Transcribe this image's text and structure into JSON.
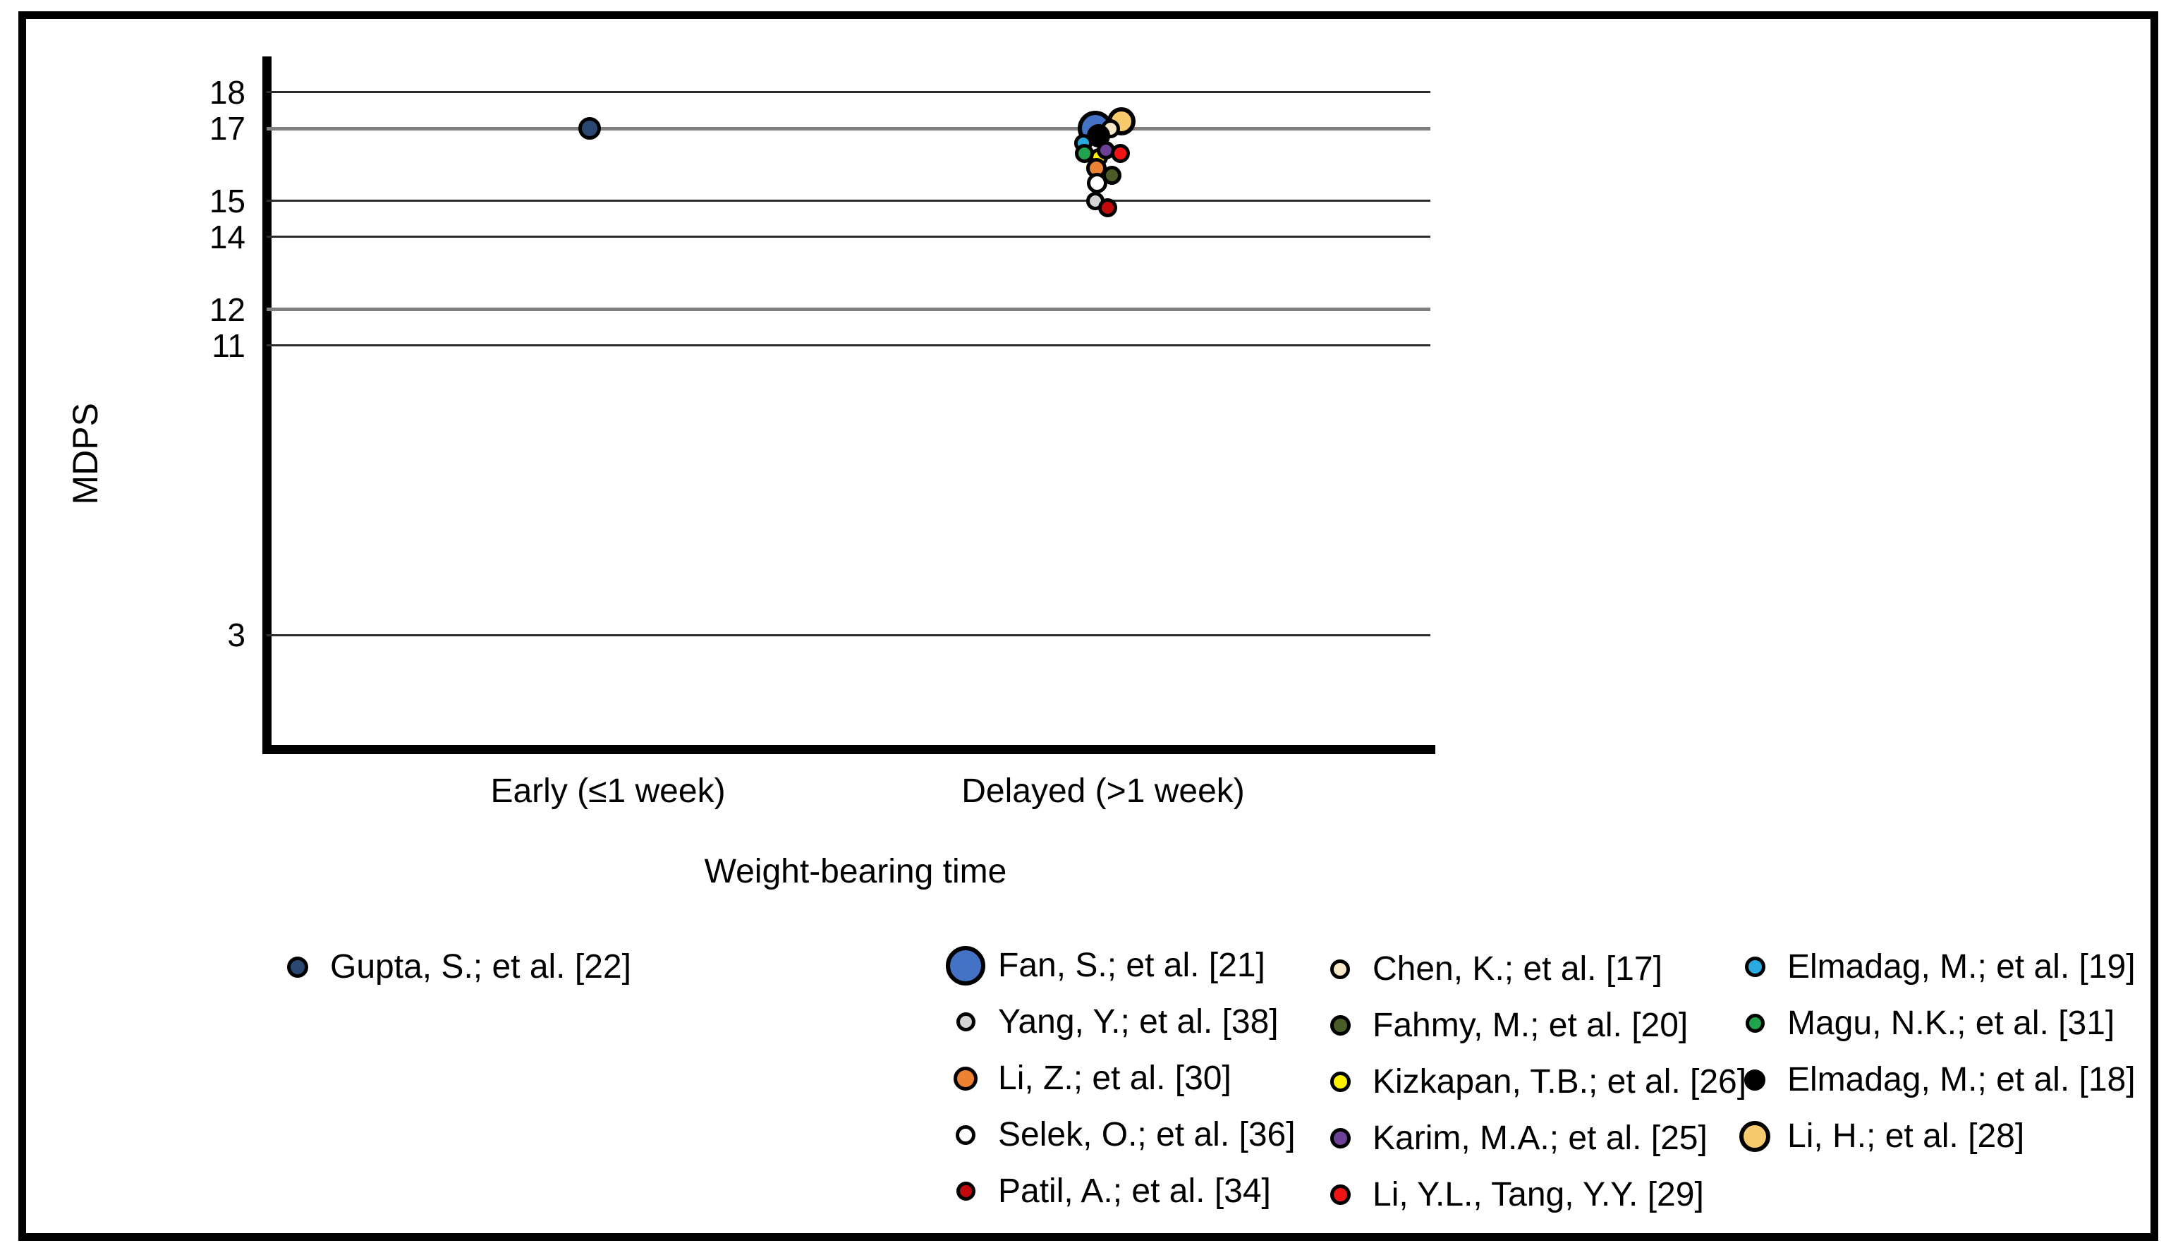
{
  "figure_title": "",
  "chart_data": {
    "type": "scatter",
    "title": "",
    "xlabel": "Weight-bearing time",
    "ylabel": "MDPS",
    "x_categories": [
      "Early (≤1 week)",
      "Delayed (>1 week)"
    ],
    "ylim": [
      0,
      19
    ],
    "grid": "horizontal",
    "legend_position": "bottom",
    "yticks": [
      {
        "v": 18,
        "strong": false
      },
      {
        "v": 17,
        "strong": true
      },
      {
        "v": 15,
        "strong": false
      },
      {
        "v": 14,
        "strong": false
      },
      {
        "v": 12,
        "strong": true
      },
      {
        "v": 11,
        "strong": false
      },
      {
        "v": 3,
        "strong": false
      }
    ],
    "series": [
      {
        "label": "Gupta, S.; et al. [22]",
        "color": "#2B4872",
        "category": 0,
        "y": 17.0,
        "dx": -26,
        "size": 32,
        "legend_col": 0,
        "legend_size": 30,
        "z": 0
      },
      {
        "label": "Fan, S.; et al. [21]",
        "color": "#4472C4",
        "category": 1,
        "y": 17.0,
        "dx": -11,
        "size": 50,
        "legend_col": 1,
        "legend_size": 56,
        "z": 1
      },
      {
        "label": "Yang, Y.; et al. [38]",
        "color": "#D4D4D4",
        "category": 1,
        "y": 15.0,
        "dx": -11,
        "size": 26,
        "legend_col": 1,
        "legend_size": 27,
        "z": 13
      },
      {
        "label": "Li, Z.; et al. [30]",
        "color": "#EE8233",
        "category": 1,
        "y": 15.9,
        "dx": -10,
        "size": 29,
        "legend_col": 1,
        "legend_size": 34,
        "z": 10
      },
      {
        "label": "Selek, O.; et al. [36]",
        "color": "#FFFFFF",
        "category": 1,
        "y": 15.5,
        "dx": -9,
        "size": 29,
        "legend_col": 1,
        "legend_size": 28,
        "z": 12
      },
      {
        "label": "Patil, A.; et al. [34]",
        "color": "#C20A0C",
        "category": 1,
        "y": 14.8,
        "dx": 6,
        "size": 27,
        "legend_col": 1,
        "legend_size": 27,
        "z": 14
      },
      {
        "label": "Chen, K.; et al. [17]",
        "color": "#F7E8C8",
        "category": 1,
        "y": 17.0,
        "dx": 10,
        "size": 27,
        "legend_col": 2,
        "legend_size": 28,
        "z": 3
      },
      {
        "label": "Fahmy, M.; et al. [20]",
        "color": "#4A5D26",
        "category": 1,
        "y": 15.7,
        "dx": 12,
        "size": 27,
        "legend_col": 2,
        "legend_size": 29,
        "z": 11
      },
      {
        "label": "Kizkapan, T.B.; et al. [26]",
        "color": "#FFF200",
        "category": 1,
        "y": 16.2,
        "dx": -6,
        "size": 26,
        "legend_col": 2,
        "legend_size": 29,
        "z": 6
      },
      {
        "label": "Karim, M.A.; et al. [25]",
        "color": "#6E4199",
        "category": 1,
        "y": 16.4,
        "dx": 4,
        "size": 26,
        "legend_col": 2,
        "legend_size": 29,
        "z": 7
      },
      {
        "label": "Li, Y.L., Tang, Y.Y. [29]",
        "color": "#F01414",
        "category": 1,
        "y": 16.3,
        "dx": 24,
        "size": 27,
        "legend_col": 2,
        "legend_size": 29,
        "z": 8
      },
      {
        "label": "Elmadag, M.; et al. [19]",
        "color": "#29ABE2",
        "category": 1,
        "y": 16.6,
        "dx": -28,
        "size": 26,
        "legend_col": 3,
        "legend_size": 29,
        "z": 5
      },
      {
        "label": "Magu, N.K.; et al. [31]",
        "color": "#21A24C",
        "category": 1,
        "y": 16.3,
        "dx": -27,
        "size": 27,
        "legend_col": 3,
        "legend_size": 27,
        "z": 9
      },
      {
        "label": "Elmadag, M.; et al. [18]",
        "color": "#000000",
        "category": 1,
        "y": 16.8,
        "dx": -7,
        "size": 33,
        "legend_col": 3,
        "legend_size": 30,
        "z": 4
      },
      {
        "label": "Li, H.; et al. [28]",
        "color": "#F7CB6D",
        "category": 1,
        "y": 17.2,
        "dx": 26,
        "size": 40,
        "legend_col": 3,
        "legend_size": 44,
        "z": 2
      }
    ]
  }
}
